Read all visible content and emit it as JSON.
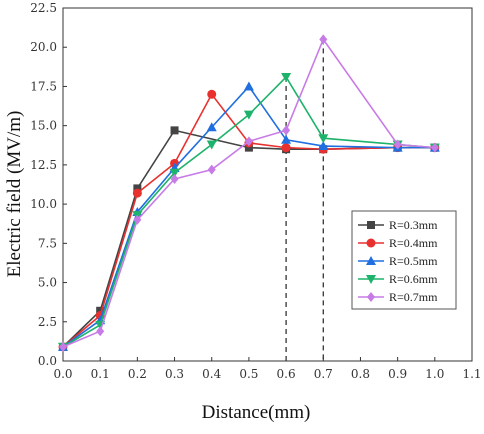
{
  "chart_data": {
    "type": "line",
    "title": "",
    "xlabel": "Distance(mm)",
    "ylabel": "Electric field (MV/m)",
    "xlim": [
      0.0,
      1.1
    ],
    "ylim": [
      0.0,
      22.5
    ],
    "xticks": [
      "0.0",
      "0.1",
      "0.2",
      "0.3",
      "0.4",
      "0.5",
      "0.6",
      "0.7",
      "0.8",
      "0.9",
      "1.0",
      "1.1"
    ],
    "yticks": [
      "0.0",
      "2.5",
      "5.0",
      "7.5",
      "10.0",
      "12.5",
      "15.0",
      "17.5",
      "20.0",
      "22.5"
    ],
    "grid": false,
    "legend_position": "lower-right",
    "reference_lines_x": [
      0.6,
      0.7
    ],
    "series": [
      {
        "name": "R=0.3mm",
        "color": "#444444",
        "marker": "square",
        "x": [
          0.0,
          0.1,
          0.2,
          0.3,
          0.5,
          0.6,
          0.7,
          0.9,
          1.0
        ],
        "y": [
          0.9,
          3.2,
          11.0,
          14.7,
          13.6,
          13.5,
          13.5,
          13.6,
          13.6
        ]
      },
      {
        "name": "R=0.4mm",
        "color": "#e8312f",
        "marker": "circle",
        "x": [
          0.0,
          0.1,
          0.2,
          0.3,
          0.4,
          0.5,
          0.6,
          0.7,
          0.9,
          1.0
        ],
        "y": [
          0.9,
          2.9,
          10.7,
          12.6,
          17.0,
          13.9,
          13.6,
          13.5,
          13.6,
          13.6
        ]
      },
      {
        "name": "R=0.5mm",
        "color": "#1f6fe0",
        "marker": "triangle-up",
        "x": [
          0.0,
          0.1,
          0.2,
          0.3,
          0.4,
          0.5,
          0.6,
          0.7,
          0.9,
          1.0
        ],
        "y": [
          0.9,
          2.6,
          9.5,
          12.3,
          14.9,
          17.5,
          14.1,
          13.7,
          13.6,
          13.6
        ]
      },
      {
        "name": "R=0.6mm",
        "color": "#1db36a",
        "marker": "triangle-down",
        "x": [
          0.0,
          0.1,
          0.2,
          0.3,
          0.4,
          0.5,
          0.6,
          0.7,
          0.9,
          1.0
        ],
        "y": [
          0.9,
          2.3,
          9.3,
          12.0,
          13.8,
          15.7,
          18.1,
          14.2,
          13.8,
          13.6
        ]
      },
      {
        "name": "R=0.7mm",
        "color": "#c77be6",
        "marker": "diamond",
        "x": [
          0.0,
          0.1,
          0.2,
          0.3,
          0.4,
          0.5,
          0.6,
          0.7,
          0.9,
          1.0
        ],
        "y": [
          0.9,
          1.9,
          9.0,
          11.6,
          12.2,
          14.0,
          14.7,
          20.5,
          13.8,
          13.6
        ]
      }
    ]
  }
}
